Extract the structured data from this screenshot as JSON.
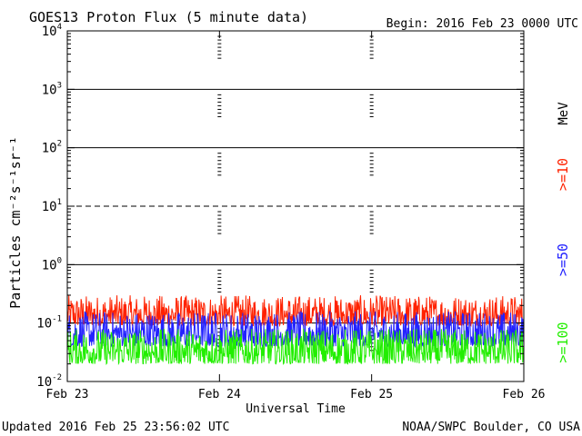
{
  "chart_data": {
    "type": "line",
    "title": "GOES13 Proton Flux (5 minute data)",
    "begin_label": "Begin: 2016 Feb 23 0000 UTC",
    "xlabel": "Universal Time",
    "ylabel": "Particles cm⁻²s⁻¹sr⁻¹",
    "y_scale": "log",
    "ylim": [
      0.01,
      10000
    ],
    "y_ticks": [
      {
        "value": 0.01,
        "base": "10",
        "exp": "-2"
      },
      {
        "value": 0.1,
        "base": "10",
        "exp": "-1"
      },
      {
        "value": 1,
        "base": "10",
        "exp": "0"
      },
      {
        "value": 10,
        "base": "10",
        "exp": "1"
      },
      {
        "value": 100,
        "base": "10",
        "exp": "2"
      },
      {
        "value": 1000,
        "base": "10",
        "exp": "3"
      },
      {
        "value": 10000,
        "base": "10",
        "exp": "4"
      }
    ],
    "x_range_days": [
      0,
      3
    ],
    "x_ticks": [
      {
        "day": 0,
        "label": "Feb 23"
      },
      {
        "day": 1,
        "label": "Feb 24"
      },
      {
        "day": 2,
        "label": "Feb 25"
      },
      {
        "day": 3,
        "label": "Feb 26"
      }
    ],
    "reference_lines": [
      {
        "value": 10,
        "style": "dashed"
      }
    ],
    "unit_label": "MeV",
    "series": [
      {
        "name": ">=10",
        "color": "#ff2200",
        "level_min": 0.09,
        "level_max": 0.3
      },
      {
        "name": ">=50",
        "color": "#2222ff",
        "level_min": 0.04,
        "level_max": 0.16
      },
      {
        "name": ">=100",
        "color": "#22ee00",
        "level_min": 0.02,
        "level_max": 0.08
      }
    ],
    "grid": true
  },
  "footer": {
    "updated": "Updated 2016 Feb 25 23:56:02 UTC",
    "source": "NOAA/SWPC Boulder, CO USA"
  }
}
